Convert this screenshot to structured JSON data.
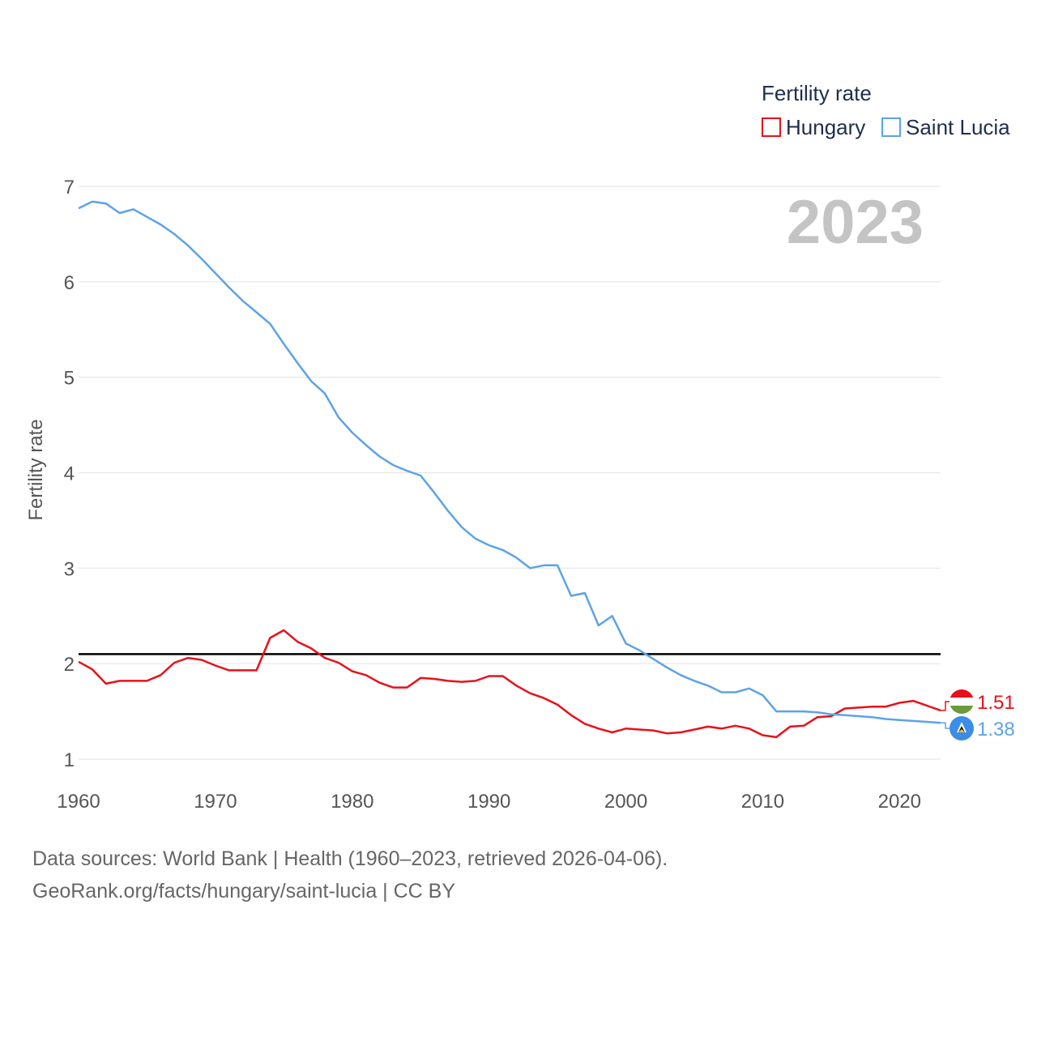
{
  "footer": {
    "line1": "Data sources: World Bank | Health (1960–2023, retrieved 2026-04-06).",
    "line2": "GeoRank.org/facts/hungary/saint-lucia | CC BY"
  },
  "colors": {
    "hungary": "#e8101a",
    "saint_lucia": "#5ca3e6",
    "reference": "#000000",
    "grid": "#e6e6e6"
  },
  "chart_data": {
    "type": "line",
    "title": "",
    "ylabel": "Fertility rate",
    "xlabel": "",
    "year_label": "2023",
    "legend_title": "Fertility rate",
    "legend_position": "top-right",
    "ylim": [
      1,
      7
    ],
    "xlim": [
      1960,
      2023
    ],
    "yticks": [
      1,
      2,
      3,
      4,
      5,
      6,
      7
    ],
    "xticks": [
      1960,
      1970,
      1980,
      1990,
      2000,
      2010,
      2020
    ],
    "reference_line": {
      "y": 2.1
    },
    "grid": true,
    "series": [
      {
        "name": "Hungary",
        "color_key": "hungary",
        "end_label": "1.51",
        "icon": "hungary-flag-icon",
        "x": [
          1960,
          1961,
          1962,
          1963,
          1964,
          1965,
          1966,
          1967,
          1968,
          1969,
          1970,
          1971,
          1972,
          1973,
          1974,
          1975,
          1976,
          1977,
          1978,
          1979,
          1980,
          1981,
          1982,
          1983,
          1984,
          1985,
          1986,
          1987,
          1988,
          1989,
          1990,
          1991,
          1992,
          1993,
          1994,
          1995,
          1996,
          1997,
          1998,
          1999,
          2000,
          2001,
          2002,
          2003,
          2004,
          2005,
          2006,
          2007,
          2008,
          2009,
          2010,
          2011,
          2012,
          2013,
          2014,
          2015,
          2016,
          2017,
          2018,
          2019,
          2020,
          2021,
          2022,
          2023
        ],
        "values": [
          2.02,
          1.94,
          1.79,
          1.82,
          1.82,
          1.82,
          1.88,
          2.01,
          2.06,
          2.04,
          1.98,
          1.93,
          1.93,
          1.93,
          2.27,
          2.35,
          2.23,
          2.16,
          2.06,
          2.01,
          1.92,
          1.88,
          1.8,
          1.75,
          1.75,
          1.85,
          1.84,
          1.82,
          1.81,
          1.82,
          1.87,
          1.87,
          1.77,
          1.69,
          1.64,
          1.57,
          1.46,
          1.37,
          1.32,
          1.28,
          1.32,
          1.31,
          1.3,
          1.27,
          1.28,
          1.31,
          1.34,
          1.32,
          1.35,
          1.32,
          1.25,
          1.23,
          1.34,
          1.35,
          1.44,
          1.45,
          1.53,
          1.54,
          1.55,
          1.55,
          1.59,
          1.61,
          1.56,
          1.51
        ]
      },
      {
        "name": "Saint Lucia",
        "color_key": "saint_lucia",
        "end_label": "1.38",
        "icon": "saint-lucia-flag-icon",
        "x": [
          1960,
          1961,
          1962,
          1963,
          1964,
          1965,
          1966,
          1967,
          1968,
          1969,
          1970,
          1971,
          1972,
          1973,
          1974,
          1975,
          1976,
          1977,
          1978,
          1979,
          1980,
          1981,
          1982,
          1983,
          1984,
          1985,
          1986,
          1987,
          1988,
          1989,
          1990,
          1991,
          1992,
          1993,
          1994,
          1995,
          1996,
          1997,
          1998,
          1999,
          2000,
          2001,
          2002,
          2003,
          2004,
          2005,
          2006,
          2007,
          2008,
          2009,
          2010,
          2011,
          2012,
          2013,
          2014,
          2015,
          2016,
          2017,
          2018,
          2019,
          2020,
          2021,
          2022,
          2023
        ],
        "values": [
          6.77,
          6.84,
          6.82,
          6.72,
          6.76,
          6.68,
          6.6,
          6.5,
          6.38,
          6.24,
          6.09,
          5.94,
          5.8,
          5.68,
          5.56,
          5.35,
          5.15,
          4.96,
          4.83,
          4.58,
          4.42,
          4.29,
          4.17,
          4.08,
          4.02,
          3.97,
          3.79,
          3.6,
          3.43,
          3.31,
          3.24,
          3.19,
          3.11,
          3.0,
          3.03,
          3.03,
          2.71,
          2.74,
          2.4,
          2.5,
          2.21,
          2.14,
          2.05,
          1.96,
          1.88,
          1.82,
          1.77,
          1.7,
          1.7,
          1.74,
          1.67,
          1.5,
          1.5,
          1.5,
          1.49,
          1.47,
          1.46,
          1.45,
          1.44,
          1.42,
          1.41,
          1.4,
          1.39,
          1.38
        ]
      }
    ]
  }
}
